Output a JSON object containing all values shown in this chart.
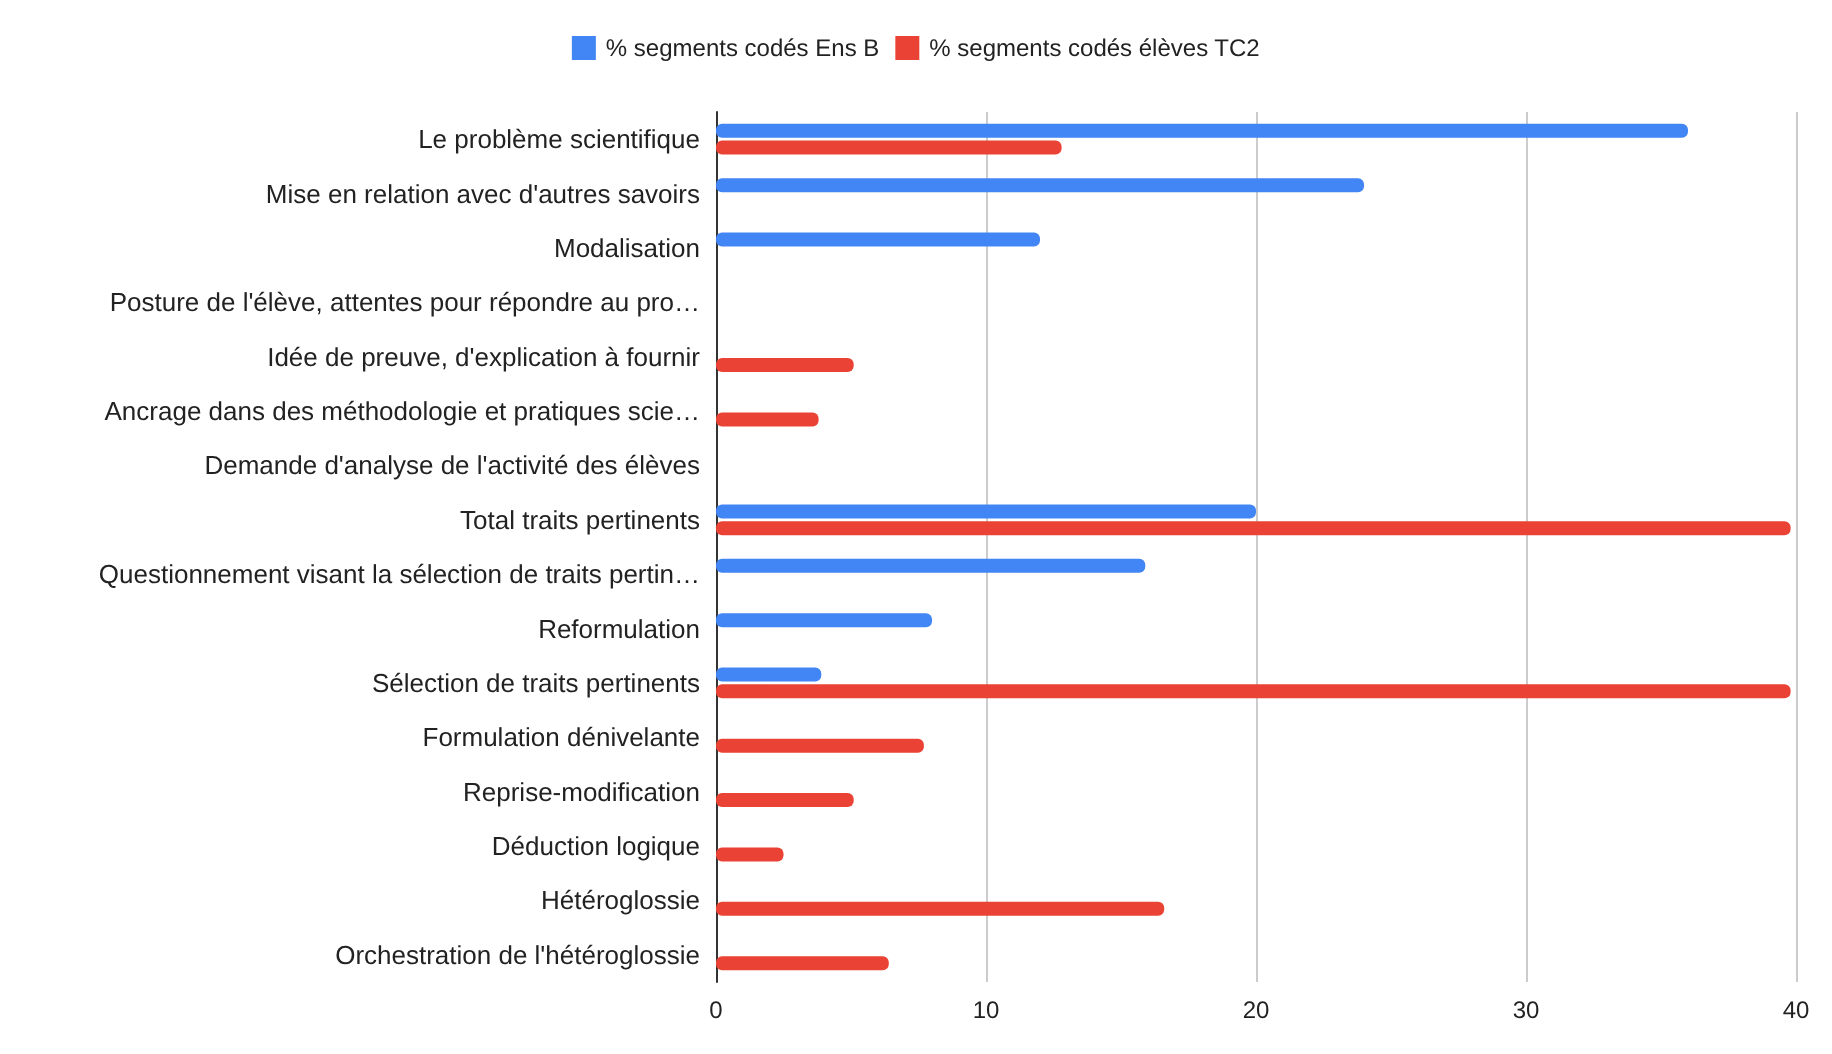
{
  "chart_data": {
    "type": "bar",
    "orientation": "horizontal",
    "categories": [
      "Le problème scientifique",
      "Mise en relation avec d'autres savoirs",
      "Modalisation",
      "Posture de l'élève, attentes pour répondre au pro…",
      "Idée de preuve, d'explication à fournir",
      "Ancrage dans des méthodologie et pratiques scie…",
      "Demande d'analyse de l'activité des élèves",
      "Total traits pertinents",
      "Questionnement visant la sélection de traits pertin…",
      "Reformulation",
      "Sélection de traits pertinents",
      "Formulation dénivelante",
      "Reprise-modification",
      "Déduction logique",
      "Hétéroglossie",
      "Orchestration de l'hétéroglossie"
    ],
    "series": [
      {
        "name": "% segments codés Ens B",
        "color": "#4285f4",
        "values": [
          36,
          24,
          12,
          null,
          null,
          null,
          null,
          20,
          15.9,
          8,
          3.9,
          null,
          null,
          null,
          null,
          null
        ]
      },
      {
        "name": "% segments codés élèves TC2",
        "color": "#ea4335",
        "values": [
          12.8,
          null,
          null,
          null,
          5.1,
          3.8,
          null,
          39.8,
          null,
          null,
          39.8,
          7.7,
          5.1,
          2.5,
          16.6,
          6.4
        ]
      }
    ],
    "xlim": [
      0,
      40
    ],
    "xticks": [
      0,
      10,
      20,
      30,
      40
    ],
    "grid": "x",
    "legend": "top"
  }
}
